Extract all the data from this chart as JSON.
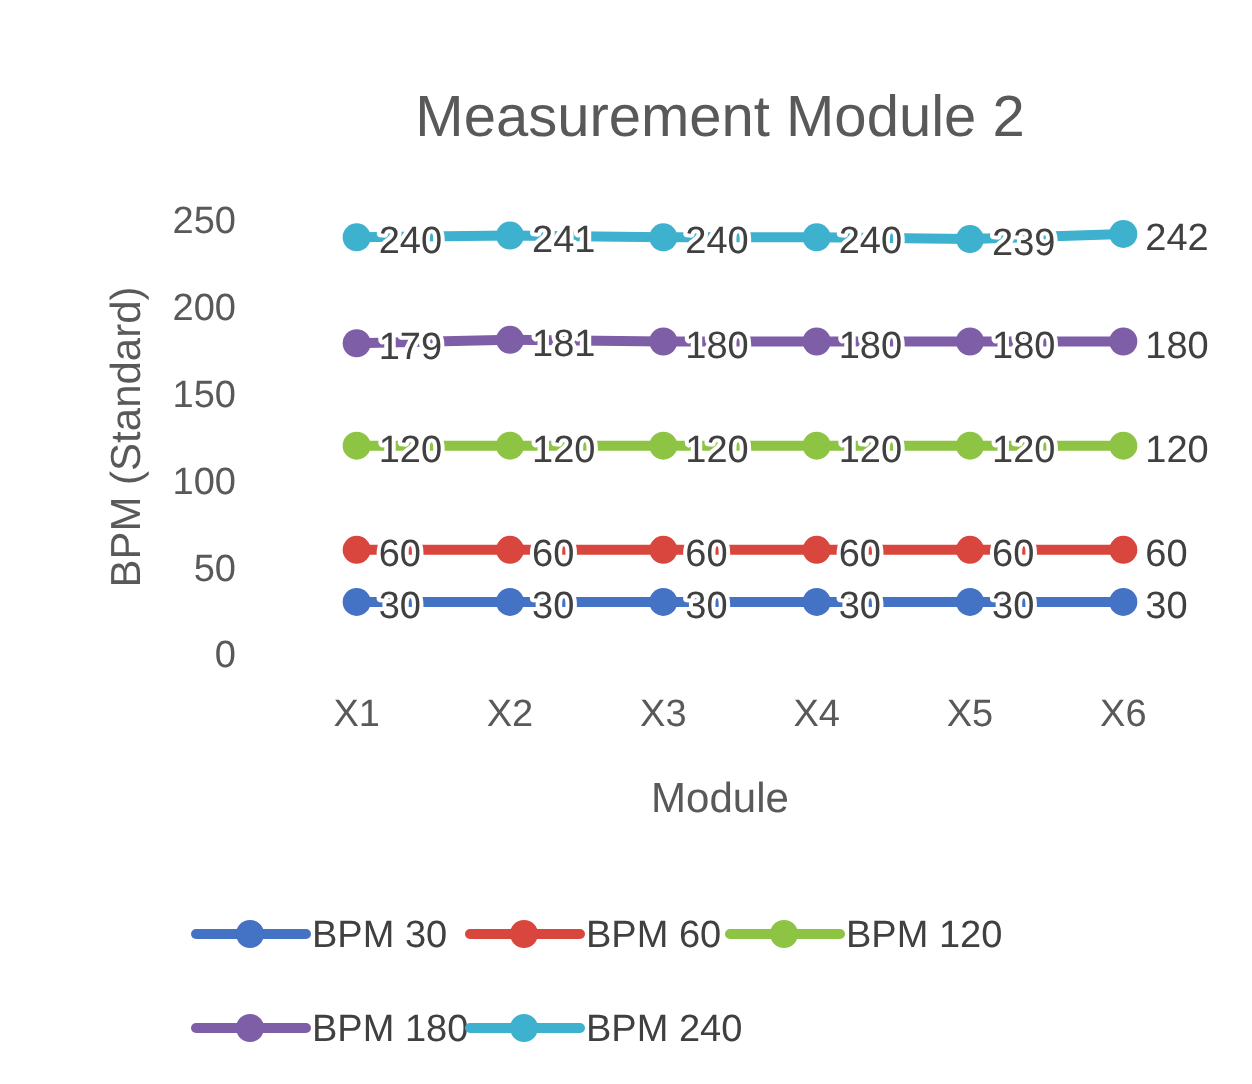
{
  "chart_data": {
    "type": "line",
    "title": "Measurement Module 2",
    "xlabel": "Module",
    "ylabel": "BPM (Standard)",
    "categories": [
      "X1",
      "X2",
      "X3",
      "X4",
      "X5",
      "X6"
    ],
    "ylim": [
      0,
      250
    ],
    "yticks": [
      0,
      50,
      100,
      150,
      200,
      250
    ],
    "grid": false,
    "legend": "bottom",
    "marker": "circle",
    "data_labels": true,
    "series": [
      {
        "name": "BPM 30",
        "color": "#4472c4",
        "values": [
          30,
          30,
          30,
          30,
          30,
          30
        ]
      },
      {
        "name": "BPM 60",
        "color": "#d9463e",
        "values": [
          60,
          60,
          60,
          60,
          60,
          60
        ]
      },
      {
        "name": "BPM 120",
        "color": "#8dc443",
        "values": [
          120,
          120,
          120,
          120,
          120,
          120
        ]
      },
      {
        "name": "BPM 180",
        "color": "#7f5ea8",
        "values": [
          179,
          181,
          180,
          180,
          180,
          180
        ]
      },
      {
        "name": "BPM 240",
        "color": "#3eb1cf",
        "values": [
          240,
          241,
          240,
          240,
          239,
          242
        ]
      }
    ]
  }
}
